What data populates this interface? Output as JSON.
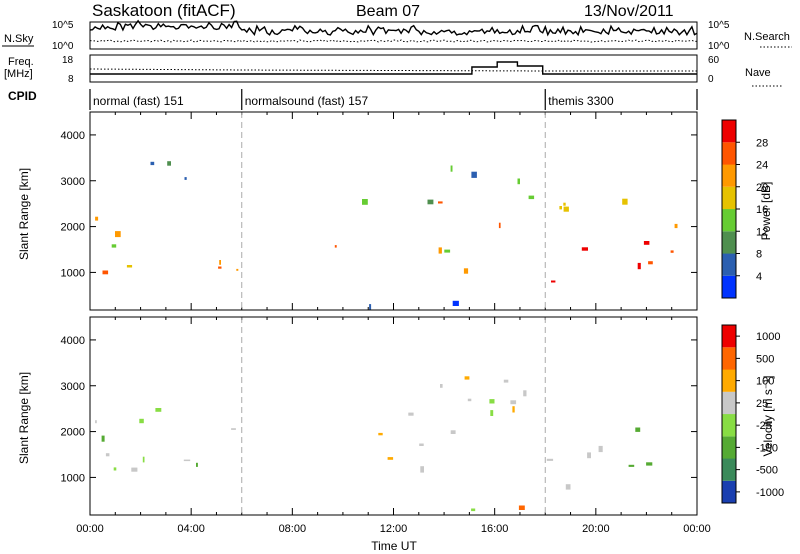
{
  "header": {
    "station": "Saskatoon (fitACF)",
    "beam": "Beam 07",
    "date": "13/Nov/2011"
  },
  "top_panels": {
    "nsky_label": "N.Sky",
    "nsky_ticks": [
      "10^5",
      "10^0"
    ],
    "nsearch_label": "N.Search",
    "nsearch_ticks": [
      "10^5",
      "10^0"
    ],
    "freq_label": "Freq.",
    "freq_unit": "[MHz]",
    "freq_ticks": [
      "18",
      "8"
    ],
    "nave_label": "Nave",
    "nave_ticks": [
      "60",
      "0"
    ],
    "cpid_label": "CPID",
    "cpid_segments": [
      {
        "label": "normal (fast) 151",
        "start": 0,
        "end": 6
      },
      {
        "label": "normalsound (fast) 157",
        "start": 6,
        "end": 18
      },
      {
        "label": "themis 3300",
        "start": 18,
        "end": 24
      }
    ]
  },
  "chart_data": [
    {
      "type": "heatmap",
      "name": "power",
      "ylabel": "Slant Range [km]",
      "yticks": [
        "4000",
        "3000",
        "2000",
        "1000"
      ],
      "ylim": [
        180,
        4500
      ],
      "xlim": [
        0,
        24
      ],
      "xticks": [
        "00:00",
        "04:00",
        "08:00",
        "12:00",
        "16:00",
        "20:00",
        "00:00"
      ],
      "colorbar_label": "Power [dB]",
      "colorbar_ticks": [
        "28",
        "24",
        "20",
        "16",
        "12",
        "8",
        "4"
      ],
      "colors": [
        "#0033ff",
        "#2b5fb0",
        "#4f8f4f",
        "#66cc33",
        "#e6c200",
        "#ff9900",
        "#ff5500",
        "#ee0000"
      ],
      "vertical_markers_hours": [
        6,
        18
      ]
    },
    {
      "type": "heatmap",
      "name": "velocity",
      "ylabel": "Slant Range [km]",
      "yticks": [
        "4000",
        "3000",
        "2000",
        "1000"
      ],
      "ylim": [
        180,
        4500
      ],
      "xlim": [
        0,
        24
      ],
      "xticks": [
        "00:00",
        "04:00",
        "08:00",
        "12:00",
        "16:00",
        "20:00",
        "00:00"
      ],
      "xlabel": "Time UT",
      "colorbar_label": "Velocity [m s⁻¹]",
      "colorbar_ticks": [
        "1000",
        "500",
        "100",
        "25",
        "-25",
        "-100",
        "-500",
        "-1000"
      ],
      "colors": [
        "#1a3fb0",
        "#3a8a5a",
        "#55aa33",
        "#88dd44",
        "#c8c8c8",
        "#ffaa00",
        "#ff6600",
        "#ee0000"
      ],
      "vertical_markers_hours": [
        6,
        18
      ]
    }
  ]
}
